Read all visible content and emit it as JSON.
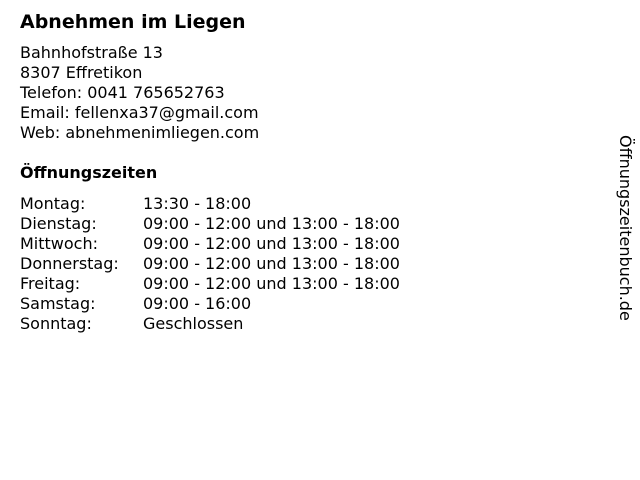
{
  "business": {
    "name": "Abnehmen im Liegen",
    "street": "Bahnhofstraße 13",
    "city": "8307 Effretikon",
    "phone": "Telefon: 0041 765652763",
    "email": "Email: fellenxa37@gmail.com",
    "web": "Web: abnehmenimliegen.com"
  },
  "hours": {
    "heading": "Öffnungszeiten",
    "rows": [
      {
        "day": "Montag:",
        "time": "13:30 - 18:00"
      },
      {
        "day": "Dienstag:",
        "time": "09:00 - 12:00 und 13:00 - 18:00"
      },
      {
        "day": "Mittwoch:",
        "time": "09:00 - 12:00 und 13:00 - 18:00"
      },
      {
        "day": "Donnerstag:",
        "time": "09:00 - 12:00 und 13:00 - 18:00"
      },
      {
        "day": "Freitag:",
        "time": "09:00 - 12:00 und 13:00 - 18:00"
      },
      {
        "day": "Samstag:",
        "time": "09:00 - 16:00"
      },
      {
        "day": "Sonntag:",
        "time": "Geschlossen"
      }
    ]
  },
  "watermark": "Öffnungszeitenbuch.de"
}
